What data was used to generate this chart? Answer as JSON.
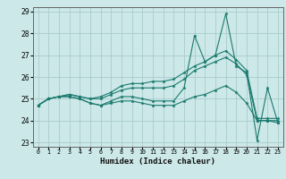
{
  "title": "",
  "xlabel": "Humidex (Indice chaleur)",
  "bg_color": "#cce8e8",
  "line_color": "#1a7a6e",
  "grid_color": "#aacccc",
  "xlim": [
    -0.5,
    23.5
  ],
  "ylim": [
    22.8,
    29.2
  ],
  "yticks": [
    23,
    24,
    25,
    26,
    27,
    28,
    29
  ],
  "xticks": [
    0,
    1,
    2,
    3,
    4,
    5,
    6,
    7,
    8,
    9,
    10,
    11,
    12,
    13,
    14,
    15,
    16,
    17,
    18,
    19,
    20,
    21,
    22,
    23
  ],
  "series": {
    "main": [
      24.7,
      25.0,
      25.1,
      25.1,
      25.0,
      24.8,
      24.7,
      24.9,
      25.1,
      25.1,
      25.0,
      24.9,
      24.9,
      24.9,
      25.5,
      27.9,
      26.7,
      27.0,
      28.9,
      26.5,
      26.2,
      23.1,
      25.5,
      23.9
    ],
    "upper1": [
      24.7,
      25.0,
      25.1,
      25.2,
      25.1,
      25.0,
      25.0,
      25.2,
      25.4,
      25.5,
      25.5,
      25.5,
      25.5,
      25.6,
      25.9,
      26.3,
      26.5,
      26.7,
      26.9,
      26.6,
      26.1,
      24.0,
      24.0,
      24.0
    ],
    "upper2": [
      24.7,
      25.0,
      25.1,
      25.2,
      25.1,
      25.0,
      25.1,
      25.3,
      25.6,
      25.7,
      25.7,
      25.8,
      25.8,
      25.9,
      26.2,
      26.5,
      26.7,
      27.0,
      27.2,
      26.8,
      26.3,
      24.1,
      24.1,
      24.1
    ],
    "lower": [
      24.7,
      25.0,
      25.1,
      25.1,
      25.0,
      24.8,
      24.7,
      24.8,
      24.9,
      24.9,
      24.8,
      24.7,
      24.7,
      24.7,
      24.9,
      25.1,
      25.2,
      25.4,
      25.6,
      25.3,
      24.8,
      24.0,
      24.0,
      23.9
    ]
  }
}
